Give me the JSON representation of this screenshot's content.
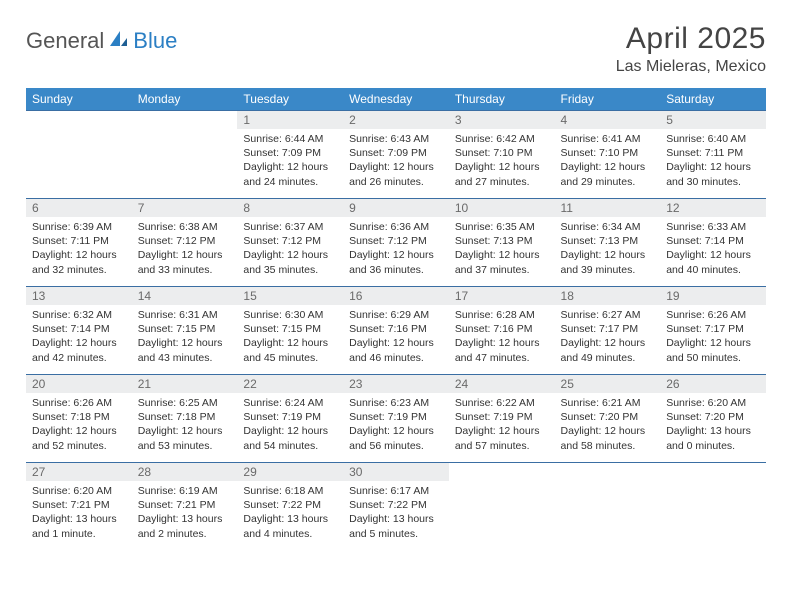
{
  "brand": {
    "part1": "General",
    "part2": "Blue"
  },
  "title": "April 2025",
  "location": "Las Mieleras, Mexico",
  "colors": {
    "header_bg": "#3a88c8",
    "header_text": "#ffffff",
    "daynum_bg": "#ecedee",
    "daynum_text": "#6a6a6a",
    "cell_border": "#3a6ea3",
    "title_color": "#444444",
    "logo_gray": "#555555",
    "logo_blue": "#2b7fc4"
  },
  "weekdays": [
    "Sunday",
    "Monday",
    "Tuesday",
    "Wednesday",
    "Thursday",
    "Friday",
    "Saturday"
  ],
  "weeks": [
    [
      null,
      null,
      {
        "n": "1",
        "l1": "Sunrise: 6:44 AM",
        "l2": "Sunset: 7:09 PM",
        "l3": "Daylight: 12 hours",
        "l4": "and 24 minutes."
      },
      {
        "n": "2",
        "l1": "Sunrise: 6:43 AM",
        "l2": "Sunset: 7:09 PM",
        "l3": "Daylight: 12 hours",
        "l4": "and 26 minutes."
      },
      {
        "n": "3",
        "l1": "Sunrise: 6:42 AM",
        "l2": "Sunset: 7:10 PM",
        "l3": "Daylight: 12 hours",
        "l4": "and 27 minutes."
      },
      {
        "n": "4",
        "l1": "Sunrise: 6:41 AM",
        "l2": "Sunset: 7:10 PM",
        "l3": "Daylight: 12 hours",
        "l4": "and 29 minutes."
      },
      {
        "n": "5",
        "l1": "Sunrise: 6:40 AM",
        "l2": "Sunset: 7:11 PM",
        "l3": "Daylight: 12 hours",
        "l4": "and 30 minutes."
      }
    ],
    [
      {
        "n": "6",
        "l1": "Sunrise: 6:39 AM",
        "l2": "Sunset: 7:11 PM",
        "l3": "Daylight: 12 hours",
        "l4": "and 32 minutes."
      },
      {
        "n": "7",
        "l1": "Sunrise: 6:38 AM",
        "l2": "Sunset: 7:12 PM",
        "l3": "Daylight: 12 hours",
        "l4": "and 33 minutes."
      },
      {
        "n": "8",
        "l1": "Sunrise: 6:37 AM",
        "l2": "Sunset: 7:12 PM",
        "l3": "Daylight: 12 hours",
        "l4": "and 35 minutes."
      },
      {
        "n": "9",
        "l1": "Sunrise: 6:36 AM",
        "l2": "Sunset: 7:12 PM",
        "l3": "Daylight: 12 hours",
        "l4": "and 36 minutes."
      },
      {
        "n": "10",
        "l1": "Sunrise: 6:35 AM",
        "l2": "Sunset: 7:13 PM",
        "l3": "Daylight: 12 hours",
        "l4": "and 37 minutes."
      },
      {
        "n": "11",
        "l1": "Sunrise: 6:34 AM",
        "l2": "Sunset: 7:13 PM",
        "l3": "Daylight: 12 hours",
        "l4": "and 39 minutes."
      },
      {
        "n": "12",
        "l1": "Sunrise: 6:33 AM",
        "l2": "Sunset: 7:14 PM",
        "l3": "Daylight: 12 hours",
        "l4": "and 40 minutes."
      }
    ],
    [
      {
        "n": "13",
        "l1": "Sunrise: 6:32 AM",
        "l2": "Sunset: 7:14 PM",
        "l3": "Daylight: 12 hours",
        "l4": "and 42 minutes."
      },
      {
        "n": "14",
        "l1": "Sunrise: 6:31 AM",
        "l2": "Sunset: 7:15 PM",
        "l3": "Daylight: 12 hours",
        "l4": "and 43 minutes."
      },
      {
        "n": "15",
        "l1": "Sunrise: 6:30 AM",
        "l2": "Sunset: 7:15 PM",
        "l3": "Daylight: 12 hours",
        "l4": "and 45 minutes."
      },
      {
        "n": "16",
        "l1": "Sunrise: 6:29 AM",
        "l2": "Sunset: 7:16 PM",
        "l3": "Daylight: 12 hours",
        "l4": "and 46 minutes."
      },
      {
        "n": "17",
        "l1": "Sunrise: 6:28 AM",
        "l2": "Sunset: 7:16 PM",
        "l3": "Daylight: 12 hours",
        "l4": "and 47 minutes."
      },
      {
        "n": "18",
        "l1": "Sunrise: 6:27 AM",
        "l2": "Sunset: 7:17 PM",
        "l3": "Daylight: 12 hours",
        "l4": "and 49 minutes."
      },
      {
        "n": "19",
        "l1": "Sunrise: 6:26 AM",
        "l2": "Sunset: 7:17 PM",
        "l3": "Daylight: 12 hours",
        "l4": "and 50 minutes."
      }
    ],
    [
      {
        "n": "20",
        "l1": "Sunrise: 6:26 AM",
        "l2": "Sunset: 7:18 PM",
        "l3": "Daylight: 12 hours",
        "l4": "and 52 minutes."
      },
      {
        "n": "21",
        "l1": "Sunrise: 6:25 AM",
        "l2": "Sunset: 7:18 PM",
        "l3": "Daylight: 12 hours",
        "l4": "and 53 minutes."
      },
      {
        "n": "22",
        "l1": "Sunrise: 6:24 AM",
        "l2": "Sunset: 7:19 PM",
        "l3": "Daylight: 12 hours",
        "l4": "and 54 minutes."
      },
      {
        "n": "23",
        "l1": "Sunrise: 6:23 AM",
        "l2": "Sunset: 7:19 PM",
        "l3": "Daylight: 12 hours",
        "l4": "and 56 minutes."
      },
      {
        "n": "24",
        "l1": "Sunrise: 6:22 AM",
        "l2": "Sunset: 7:19 PM",
        "l3": "Daylight: 12 hours",
        "l4": "and 57 minutes."
      },
      {
        "n": "25",
        "l1": "Sunrise: 6:21 AM",
        "l2": "Sunset: 7:20 PM",
        "l3": "Daylight: 12 hours",
        "l4": "and 58 minutes."
      },
      {
        "n": "26",
        "l1": "Sunrise: 6:20 AM",
        "l2": "Sunset: 7:20 PM",
        "l3": "Daylight: 13 hours",
        "l4": "and 0 minutes."
      }
    ],
    [
      {
        "n": "27",
        "l1": "Sunrise: 6:20 AM",
        "l2": "Sunset: 7:21 PM",
        "l3": "Daylight: 13 hours",
        "l4": "and 1 minute."
      },
      {
        "n": "28",
        "l1": "Sunrise: 6:19 AM",
        "l2": "Sunset: 7:21 PM",
        "l3": "Daylight: 13 hours",
        "l4": "and 2 minutes."
      },
      {
        "n": "29",
        "l1": "Sunrise: 6:18 AM",
        "l2": "Sunset: 7:22 PM",
        "l3": "Daylight: 13 hours",
        "l4": "and 4 minutes."
      },
      {
        "n": "30",
        "l1": "Sunrise: 6:17 AM",
        "l2": "Sunset: 7:22 PM",
        "l3": "Daylight: 13 hours",
        "l4": "and 5 minutes."
      },
      null,
      null,
      null
    ]
  ]
}
